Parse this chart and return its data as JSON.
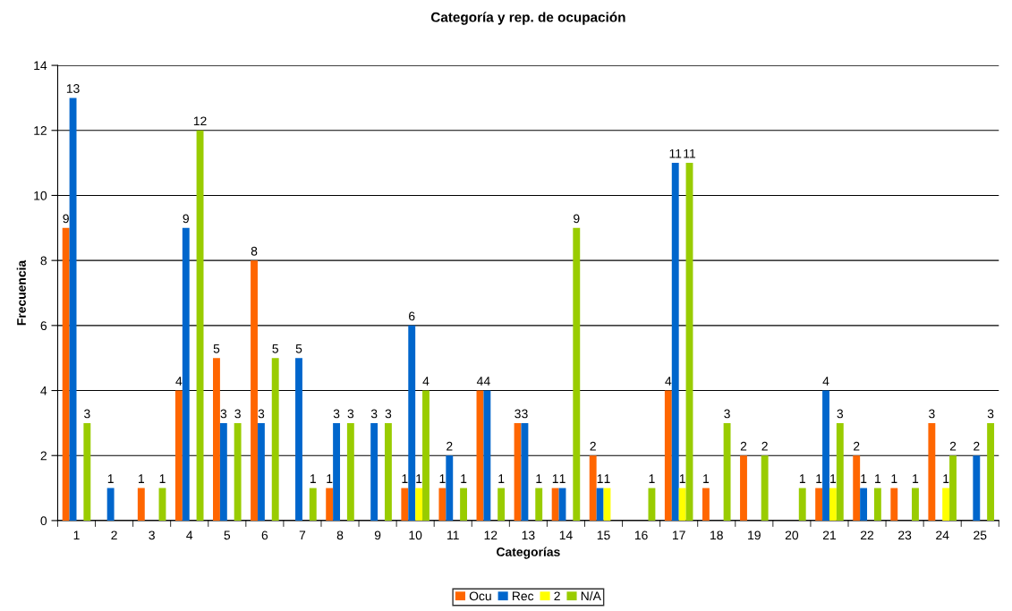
{
  "chart_data": {
    "type": "bar",
    "title": "Categoría y rep. de ocupación",
    "xlabel": "Categorías",
    "ylabel": "Frecuencia",
    "categories": [
      "1",
      "2",
      "3",
      "4",
      "5",
      "6",
      "7",
      "8",
      "9",
      "10",
      "11",
      "12",
      "13",
      "14",
      "15",
      "16",
      "17",
      "18",
      "19",
      "20",
      "21",
      "22",
      "23",
      "24",
      "25"
    ],
    "series": [
      {
        "name": "Ocu",
        "color": "#ff6600",
        "values": [
          9,
          null,
          1,
          4,
          5,
          8,
          null,
          1,
          null,
          1,
          1,
          4,
          3,
          1,
          2,
          null,
          4,
          1,
          2,
          null,
          1,
          2,
          1,
          3,
          null
        ]
      },
      {
        "name": "Rec",
        "color": "#0066cc",
        "values": [
          13,
          1,
          null,
          9,
          3,
          3,
          5,
          3,
          3,
          6,
          2,
          4,
          3,
          1,
          1,
          null,
          11,
          null,
          null,
          null,
          4,
          1,
          null,
          null,
          2
        ]
      },
      {
        "name": "2",
        "color": "#ffff00",
        "values": [
          null,
          null,
          null,
          null,
          null,
          null,
          null,
          null,
          null,
          1,
          null,
          null,
          null,
          null,
          1,
          null,
          1,
          null,
          null,
          null,
          1,
          null,
          null,
          1,
          null
        ]
      },
      {
        "name": "N/A",
        "color": "#99cc00",
        "values": [
          3,
          null,
          1,
          12,
          3,
          5,
          1,
          3,
          3,
          4,
          1,
          1,
          1,
          9,
          null,
          1,
          11,
          3,
          2,
          1,
          3,
          1,
          1,
          2,
          3
        ]
      }
    ],
    "ylim": [
      0,
      14
    ],
    "yticks": [
      0,
      2,
      4,
      6,
      8,
      10,
      12,
      14
    ],
    "grid": "y",
    "legend": "bottom",
    "data_labels": true
  }
}
